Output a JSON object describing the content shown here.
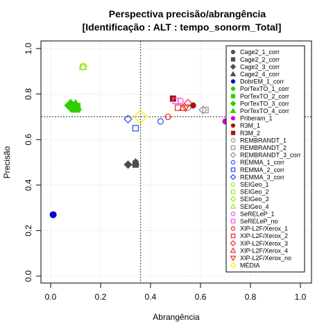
{
  "chart_data": {
    "type": "scatter",
    "title": "Perspectiva precisão/abrangência",
    "subtitle": "[Identificação : ALT : tempo_sonorm_Total]",
    "xlabel": "Abrangência",
    "ylabel": "Precisão",
    "xlim": [
      0,
      1
    ],
    "ylim": [
      0,
      1
    ],
    "xticks": [
      "0.0",
      "0.2",
      "0.4",
      "0.6",
      "0.8",
      "1.0"
    ],
    "yticks": [
      "0.0",
      "0.2",
      "0.4",
      "0.6",
      "0.8",
      "1.0"
    ],
    "grid": true,
    "reference_lines": {
      "x": 0.36,
      "y": 0.7
    },
    "legend_position": "top-right",
    "series": [
      {
        "name": "Cage2_1_corr",
        "color": "#4d4d4d",
        "marker": "circle-filled",
        "points": [
          [
            0.34,
            0.5
          ]
        ]
      },
      {
        "name": "Cage2_2_corr",
        "color": "#4d4d4d",
        "marker": "square-filled",
        "points": [
          [
            0.34,
            0.49
          ]
        ]
      },
      {
        "name": "Cage2_3_corr",
        "color": "#4d4d4d",
        "marker": "diamond-filled",
        "points": [
          [
            0.31,
            0.49
          ]
        ]
      },
      {
        "name": "Cage2_4_corr",
        "color": "#4d4d4d",
        "marker": "triangle-filled",
        "points": [
          [
            0.34,
            0.5
          ]
        ]
      },
      {
        "name": "DobrEM_1_corr",
        "color": "#0000cc",
        "marker": "circle-filled",
        "points": [
          [
            0.01,
            0.27
          ]
        ]
      },
      {
        "name": "PorTexTO_1_corr",
        "color": "#33cc00",
        "marker": "circle-filled",
        "points": [
          [
            0.09,
            0.74
          ]
        ]
      },
      {
        "name": "PorTexTO_2_corr",
        "color": "#33cc00",
        "marker": "square-filled",
        "points": [
          [
            0.1,
            0.74
          ]
        ]
      },
      {
        "name": "PorTexTO_3_corr",
        "color": "#33cc00",
        "marker": "diamond-filled",
        "points": [
          [
            0.08,
            0.75
          ]
        ]
      },
      {
        "name": "PorTexTO_4_corr",
        "color": "#33cc00",
        "marker": "triangle-filled",
        "points": [
          [
            0.1,
            0.75
          ]
        ]
      },
      {
        "name": "Priberam_1",
        "color": "#cc00cc",
        "marker": "circle-filled",
        "points": [
          [
            0.7,
            0.68
          ]
        ]
      },
      {
        "name": "R3M_1",
        "color": "#aa1111",
        "marker": "circle-filled",
        "points": [
          [
            0.57,
            0.75
          ]
        ]
      },
      {
        "name": "R3M_2",
        "color": "#aa1111",
        "marker": "square-filled",
        "points": [
          [
            0.49,
            0.78
          ]
        ]
      },
      {
        "name": "REMBRANDT_1",
        "color": "#999999",
        "marker": "circle-open",
        "points": [
          [
            0.55,
            0.74
          ]
        ]
      },
      {
        "name": "REMBRANDT_2",
        "color": "#999999",
        "marker": "square-open",
        "points": [
          [
            0.62,
            0.73
          ]
        ]
      },
      {
        "name": "REMBRANDT_3_corr",
        "color": "#999999",
        "marker": "diamond-open",
        "points": [
          [
            0.61,
            0.73
          ]
        ]
      },
      {
        "name": "REMMA_1_corr",
        "color": "#3355ee",
        "marker": "circle-open",
        "points": [
          [
            0.44,
            0.68
          ]
        ]
      },
      {
        "name": "REMMA_2_corr",
        "color": "#3355ee",
        "marker": "square-open",
        "points": [
          [
            0.34,
            0.65
          ]
        ]
      },
      {
        "name": "REMMA_3_corr",
        "color": "#3355ee",
        "marker": "diamond-open",
        "points": [
          [
            0.31,
            0.69
          ]
        ]
      },
      {
        "name": "SEIGeo_1",
        "color": "#99ee33",
        "marker": "circle-open",
        "points": [
          [
            0.13,
            0.92
          ]
        ]
      },
      {
        "name": "SEIGeo_2",
        "color": "#99ee33",
        "marker": "square-open",
        "points": [
          [
            0.13,
            0.92
          ]
        ]
      },
      {
        "name": "SEIGeo_3",
        "color": "#99ee33",
        "marker": "diamond-open",
        "points": [
          [
            0.13,
            0.92
          ]
        ]
      },
      {
        "name": "SEIGeo_4",
        "color": "#99ee33",
        "marker": "triangle-open",
        "points": [
          [
            0.13,
            0.92
          ]
        ]
      },
      {
        "name": "SeRELeP_1",
        "color": "#ee55ee",
        "marker": "circle-open",
        "points": [
          [
            0.52,
            0.77
          ]
        ]
      },
      {
        "name": "SeRELeP_no",
        "color": "#ee55ee",
        "marker": "square-open",
        "points": [
          [
            0.5,
            0.77
          ]
        ]
      },
      {
        "name": "XIP-L2F/Xerox_1",
        "color": "#ee3333",
        "marker": "circle-open",
        "points": [
          [
            0.47,
            0.7
          ]
        ]
      },
      {
        "name": "XIP-L2F/Xerox_2",
        "color": "#ee3333",
        "marker": "square-open",
        "points": [
          [
            0.51,
            0.74
          ]
        ]
      },
      {
        "name": "XIP-L2F/Xerox_3",
        "color": "#ee3333",
        "marker": "diamond-open",
        "points": [
          [
            0.55,
            0.76
          ]
        ]
      },
      {
        "name": "XIP-L2F/Xerox_4",
        "color": "#ee3333",
        "marker": "triangle-open",
        "points": [
          [
            0.53,
            0.74
          ]
        ]
      },
      {
        "name": "XIP-L2F/Xerox_no",
        "color": "#ee3333",
        "marker": "triangle-down-open",
        "points": [
          [
            0.54,
            0.74
          ]
        ]
      },
      {
        "name": "MÉDIA",
        "color": "#ffee00",
        "marker": "diamond-open",
        "points": [
          [
            0.36,
            0.7
          ]
        ]
      }
    ]
  }
}
